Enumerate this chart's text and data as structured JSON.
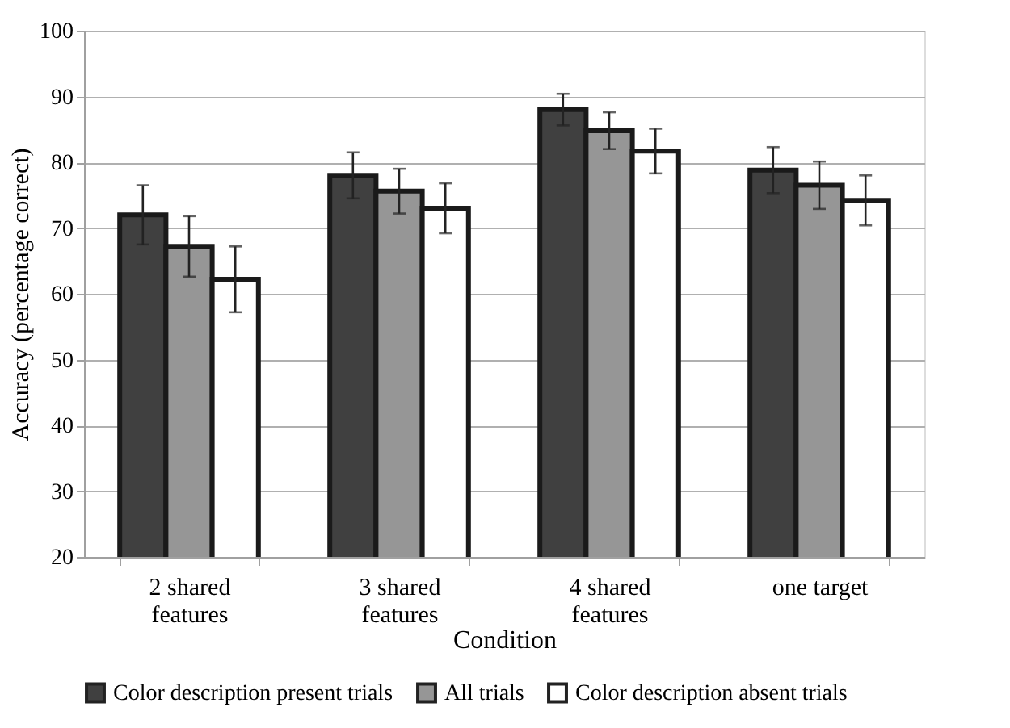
{
  "chart_data": {
    "type": "bar",
    "xlabel": "Condition",
    "ylabel": "Accuracy (percentage correct)",
    "categories": [
      "2 shared\nfeatures",
      "3 shared\nfeatures",
      "4 shared\nfeatures",
      "one target"
    ],
    "series": [
      {
        "name": "Color description present trials",
        "color": "#404040",
        "values": [
          72,
          78,
          88,
          78.8
        ],
        "errors": [
          4.5,
          3.5,
          2.4,
          3.5
        ]
      },
      {
        "name": "All trials",
        "color": "#969696",
        "values": [
          67.2,
          75.6,
          84.8,
          76.5
        ],
        "errors": [
          4.6,
          3.4,
          2.8,
          3.6
        ]
      },
      {
        "name": "Color description absent trials",
        "color": "#ffffff",
        "values": [
          62.2,
          73,
          81.7,
          74.2
        ],
        "errors": [
          5,
          3.8,
          3.4,
          3.8
        ]
      }
    ],
    "ylim": [
      20,
      100
    ],
    "yticks": [
      20,
      30,
      40,
      50,
      60,
      70,
      80,
      90,
      100
    ],
    "grid": "y",
    "legend": "bottom"
  }
}
